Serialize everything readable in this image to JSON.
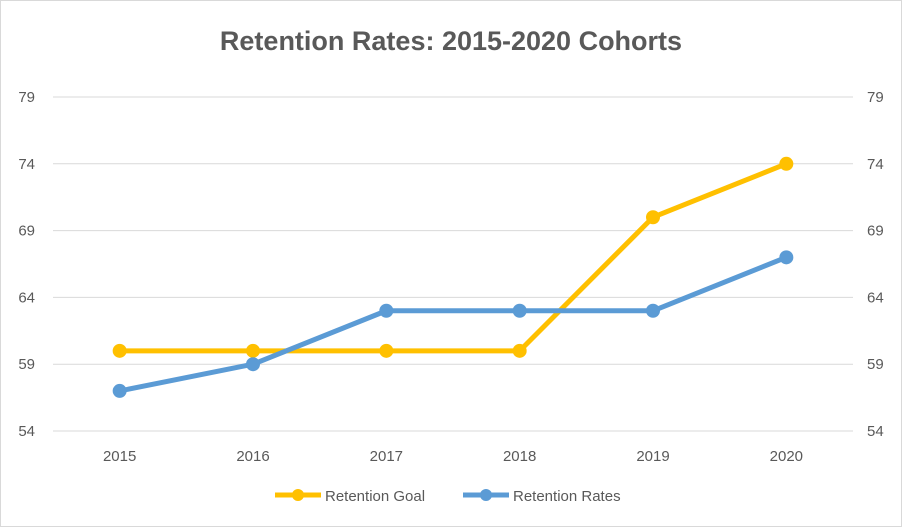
{
  "chart_data": {
    "type": "line",
    "title": "Retention Rates: 2015-2020 Cohorts",
    "categories": [
      "2015",
      "2016",
      "2017",
      "2018",
      "2019",
      "2020"
    ],
    "series": [
      {
        "name": "Retention Goal",
        "values": [
          60,
          60,
          60,
          60,
          70,
          74
        ],
        "color": "#FFC000"
      },
      {
        "name": "Retention Rates",
        "values": [
          57,
          59,
          63,
          63,
          63,
          67
        ],
        "color": "#5B9BD5"
      }
    ],
    "yticks": [
      "54",
      "59",
      "64",
      "69",
      "74",
      "79"
    ],
    "ylim": [
      54,
      79
    ],
    "secondary_y_axis": true,
    "grid": true,
    "legend_position": "bottom"
  }
}
